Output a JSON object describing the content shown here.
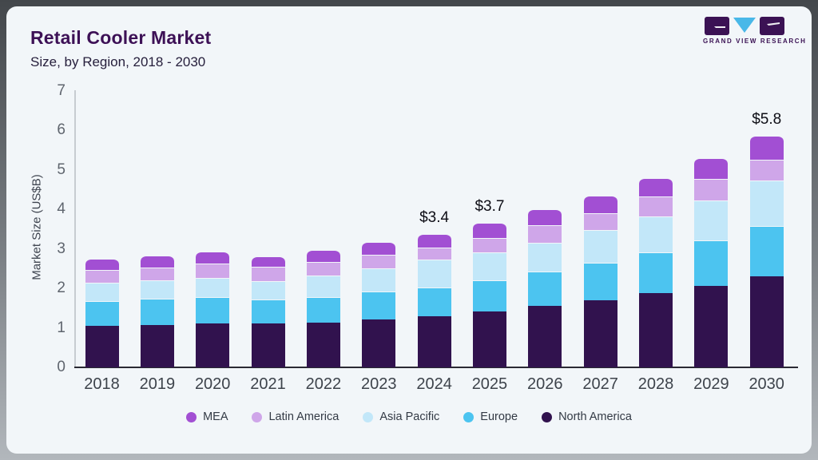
{
  "header": {
    "title": "Retail Cooler Market",
    "subtitle": "Size, by Region, 2018 - 2030"
  },
  "logo": {
    "text": "GRAND VIEW RESEARCH",
    "purple": "#3b1254",
    "cyan": "#49b8e8"
  },
  "chart_data": {
    "type": "bar",
    "stacked": true,
    "title": "Retail Cooler Market",
    "subtitle": "Size, by Region, 2018 - 2030",
    "xlabel": "",
    "ylabel": "Market Size (US$B)",
    "ylim": [
      0,
      7
    ],
    "yticks": [
      0,
      1,
      2,
      3,
      4,
      5,
      6,
      7
    ],
    "grid": false,
    "categories": [
      "2018",
      "2019",
      "2020",
      "2021",
      "2022",
      "2023",
      "2024",
      "2025",
      "2026",
      "2027",
      "2028",
      "2029",
      "2030"
    ],
    "series": [
      {
        "name": "North America",
        "color": "#31124e",
        "values": [
          1.06,
          1.08,
          1.12,
          1.11,
          1.14,
          1.22,
          1.3,
          1.41,
          1.55,
          1.7,
          1.87,
          2.06,
          2.31
        ]
      },
      {
        "name": "Europe",
        "color": "#4cc4f0",
        "values": [
          0.61,
          0.65,
          0.65,
          0.6,
          0.64,
          0.69,
          0.72,
          0.79,
          0.87,
          0.95,
          1.03,
          1.15,
          1.26
        ]
      },
      {
        "name": "Asia Pacific",
        "color": "#c2e7f9",
        "values": [
          0.47,
          0.47,
          0.5,
          0.47,
          0.55,
          0.6,
          0.71,
          0.71,
          0.73,
          0.82,
          0.92,
          1.02,
          1.15
        ]
      },
      {
        "name": "Latin America",
        "color": "#cfa6e9",
        "values": [
          0.32,
          0.33,
          0.35,
          0.37,
          0.34,
          0.33,
          0.31,
          0.36,
          0.45,
          0.42,
          0.5,
          0.53,
          0.54
        ]
      },
      {
        "name": "MEA",
        "color": "#a24fd3",
        "values": [
          0.29,
          0.3,
          0.31,
          0.26,
          0.31,
          0.33,
          0.33,
          0.38,
          0.4,
          0.46,
          0.46,
          0.54,
          0.59
        ]
      }
    ],
    "annotations": [
      {
        "category": "2024",
        "text": "$3.4"
      },
      {
        "category": "2025",
        "text": "$3.7"
      },
      {
        "category": "2030",
        "text": "$5.8"
      }
    ],
    "legend": {
      "position": "bottom",
      "items": [
        "MEA",
        "Latin America",
        "Asia Pacific",
        "Europe",
        "North America"
      ]
    }
  }
}
